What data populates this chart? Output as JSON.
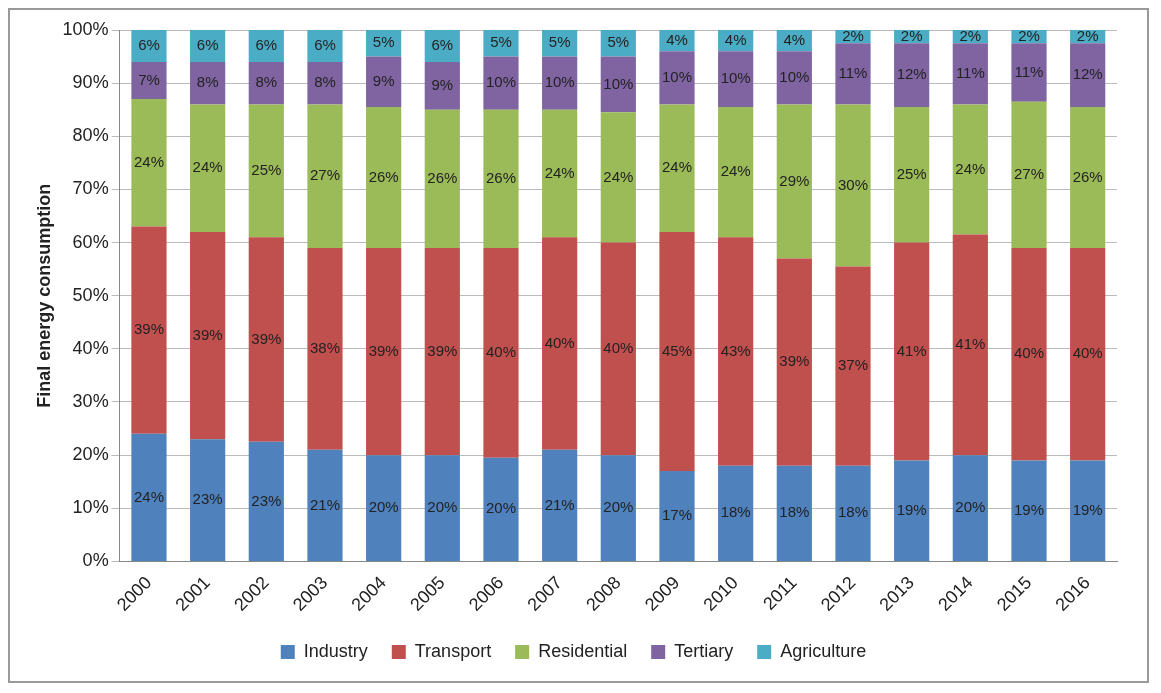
{
  "chart_data": {
    "type": "bar",
    "stacked": true,
    "ylabel": "Final energy consumption",
    "categories": [
      "2000",
      "2001",
      "2002",
      "2003",
      "2004",
      "2005",
      "2006",
      "2007",
      "2008",
      "2009",
      "2010",
      "2011",
      "2012",
      "2013",
      "2014",
      "2015",
      "2016"
    ],
    "series": [
      {
        "name": "Industry",
        "color": "#4f81bd",
        "values": [
          24,
          23,
          22.5,
          21,
          20,
          20,
          19.5,
          21,
          20,
          17,
          18,
          18,
          18,
          19,
          20,
          19,
          19
        ],
        "value_labels": [
          "24%",
          "23%",
          "23%",
          "21%",
          "20%",
          "20%",
          "20%",
          "21%",
          "20%",
          "17%",
          "18%",
          "18%",
          "18%",
          "19%",
          "20%",
          "19%",
          "19%"
        ]
      },
      {
        "name": "Transport",
        "color": "#c0504d",
        "values": [
          39,
          39,
          38.5,
          38,
          39,
          39,
          39.5,
          40,
          40,
          45,
          43,
          39,
          37.5,
          41,
          41.5,
          40,
          40
        ],
        "value_labels": [
          "39%",
          "39%",
          "39%",
          "38%",
          "39%",
          "39%",
          "40%",
          "40%",
          "40%",
          "45%",
          "43%",
          "39%",
          "37%",
          "41%",
          "41%",
          "40%",
          "40%"
        ]
      },
      {
        "name": "Residential",
        "color": "#9bbb59",
        "values": [
          24,
          24,
          25,
          27,
          26.5,
          26,
          26,
          24,
          24.5,
          24,
          24.5,
          29,
          30.5,
          25.5,
          24.5,
          27.5,
          26.5
        ],
        "value_labels": [
          "24%",
          "24%",
          "25%",
          "27%",
          "26%",
          "26%",
          "26%",
          "24%",
          "24%",
          "24%",
          "24%",
          "29%",
          "30%",
          "25%",
          "24%",
          "27%",
          "26%"
        ]
      },
      {
        "name": "Tertiary",
        "color": "#8064a2",
        "values": [
          7,
          8,
          8,
          8,
          9.5,
          9,
          10,
          10,
          10.5,
          10,
          10.5,
          10,
          11.5,
          12,
          11.5,
          11,
          12
        ],
        "value_labels": [
          "7%",
          "8%",
          "8%",
          "8%",
          "9%",
          "9%",
          "10%",
          "10%",
          "10%",
          "10%",
          "10%",
          "10%",
          "11%",
          "12%",
          "11%",
          "11%",
          "12%"
        ]
      },
      {
        "name": "Agriculture",
        "color": "#4bacc6",
        "values": [
          6,
          6,
          6,
          6,
          5,
          6,
          5,
          5,
          5,
          4,
          4,
          4,
          2.5,
          2.5,
          2.5,
          2.5,
          2.5
        ],
        "value_labels": [
          "6%",
          "6%",
          "6%",
          "6%",
          "5%",
          "6%",
          "5%",
          "5%",
          "5%",
          "4%",
          "4%",
          "4%",
          "2%",
          "2%",
          "2%",
          "2%",
          "2%"
        ]
      }
    ],
    "ylim": [
      0,
      100
    ],
    "yticks": [
      {
        "value": 0,
        "label": "0%"
      },
      {
        "value": 10,
        "label": "10%"
      },
      {
        "value": 20,
        "label": "20%"
      },
      {
        "value": 30,
        "label": "30%"
      },
      {
        "value": 40,
        "label": "40%"
      },
      {
        "value": 50,
        "label": "50%"
      },
      {
        "value": 60,
        "label": "60%"
      },
      {
        "value": 70,
        "label": "70%"
      },
      {
        "value": 80,
        "label": "80%"
      },
      {
        "value": 90,
        "label": "90%"
      },
      {
        "value": 100,
        "label": "100%"
      }
    ],
    "grid": "y",
    "legend": "bottom"
  }
}
